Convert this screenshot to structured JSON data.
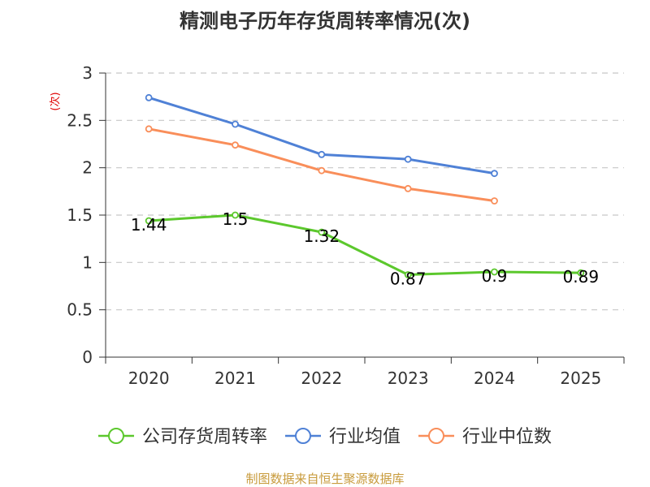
{
  "chart_data": {
    "type": "line",
    "title": "精测电子历年存货周转率情况(次)",
    "unit": "(次)",
    "categories": [
      "2020",
      "2021",
      "2022",
      "2023",
      "2024",
      "2025"
    ],
    "y_ticks": [
      "0",
      "0.5",
      "1",
      "1.5",
      "2",
      "2.5",
      "3"
    ],
    "ylim": [
      0,
      3
    ],
    "grid": true,
    "legend_position": "bottom",
    "series": [
      {
        "name": "公司存货周转率",
        "values": [
          1.44,
          1.5,
          1.32,
          0.87,
          0.9,
          0.89
        ],
        "labels": [
          "1.44",
          "1.5",
          "1.32",
          "0.87",
          "0.9",
          "0.89"
        ],
        "color": "#5cc82d"
      },
      {
        "name": "行业均值",
        "values": [
          2.74,
          2.46,
          2.14,
          2.09,
          1.94,
          null
        ],
        "color": "#4f81d6"
      },
      {
        "name": "行业中位数",
        "values": [
          2.41,
          2.24,
          1.97,
          1.78,
          1.65,
          null
        ],
        "color": "#f98e5a"
      }
    ],
    "source": "制图数据来自恒生聚源数据库"
  }
}
